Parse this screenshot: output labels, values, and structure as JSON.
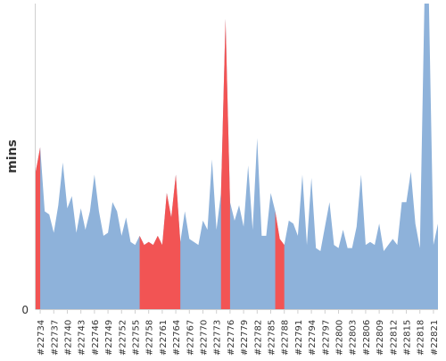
{
  "chart_data": {
    "type": "area",
    "title": "",
    "xlabel": "",
    "ylabel": "mins",
    "y_tick_labels": [
      "0"
    ],
    "ylim": [
      0,
      100
    ],
    "grid": false,
    "colors": {
      "normal": "#8eb2da",
      "highlight": "#f25454",
      "axis": "#d0d0d0",
      "text": "#333333"
    },
    "x_tick_labels": [
      "#22734",
      "#22737",
      "#22740",
      "#22743",
      "#22746",
      "#22749",
      "#22752",
      "#22755",
      "#22758",
      "#22761",
      "#22764",
      "#22767",
      "#22770",
      "#22773",
      "#22776",
      "#22779",
      "#22782",
      "#22785",
      "#22788",
      "#22791",
      "#22794",
      "#22797",
      "#22800",
      "#22803",
      "#22806",
      "#22809",
      "#22812",
      "#22815",
      "#22818",
      "#22821"
    ],
    "x": [
      22733,
      22734,
      22735,
      22736,
      22737,
      22738,
      22739,
      22740,
      22741,
      22742,
      22743,
      22744,
      22745,
      22746,
      22747,
      22748,
      22749,
      22750,
      22751,
      22752,
      22753,
      22754,
      22755,
      22756,
      22757,
      22758,
      22759,
      22760,
      22761,
      22762,
      22763,
      22764,
      22765,
      22766,
      22767,
      22768,
      22769,
      22770,
      22771,
      22772,
      22773,
      22774,
      22775,
      22776,
      22777,
      22778,
      22779,
      22780,
      22781,
      22782,
      22783,
      22784,
      22785,
      22786,
      22787,
      22788,
      22789,
      22790,
      22791,
      22792,
      22793,
      22794,
      22795,
      22796,
      22797,
      22798,
      22799,
      22800,
      22801,
      22802,
      22803,
      22804,
      22805,
      22806,
      22807,
      22808,
      22809,
      22810,
      22811,
      22812,
      22813,
      22814,
      22815,
      22816,
      22817,
      22818,
      22819,
      22820,
      22821,
      22822
    ],
    "values": [
      45,
      53,
      32,
      31,
      25,
      34,
      48,
      33,
      37,
      25,
      33,
      26,
      32,
      44,
      32,
      24,
      25,
      35,
      32,
      24,
      30,
      22,
      21,
      24,
      21,
      22,
      21,
      24,
      21,
      38,
      30,
      44,
      22,
      32,
      23,
      22,
      21,
      29,
      26,
      49,
      26,
      38,
      95,
      35,
      29,
      34,
      27,
      47,
      26,
      56,
      24,
      24,
      38,
      32,
      23,
      21,
      29,
      28,
      24,
      44,
      21,
      43,
      20,
      19,
      27,
      35,
      21,
      20,
      26,
      20,
      20,
      27,
      44,
      21,
      22,
      21,
      28,
      19,
      21,
      23,
      21,
      35,
      35,
      45,
      28,
      20,
      100,
      100,
      21,
      28
    ],
    "highlight_ranges": [
      [
        22733,
        22734
      ],
      [
        22756,
        22765
      ],
      [
        22774,
        22776
      ],
      [
        22786,
        22788
      ]
    ]
  }
}
